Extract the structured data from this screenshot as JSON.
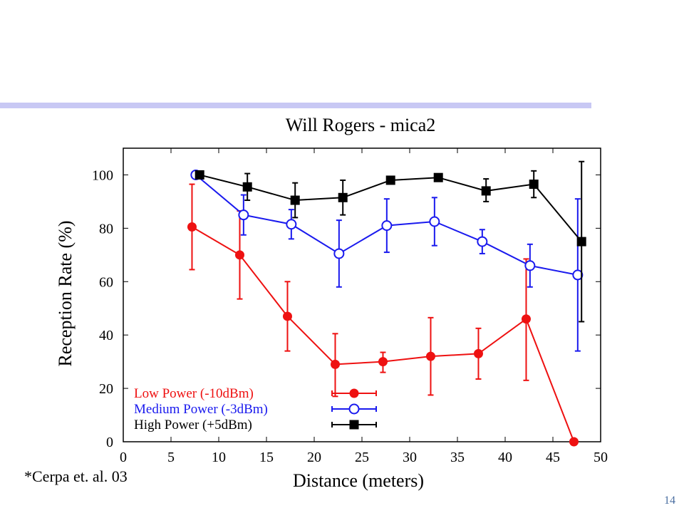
{
  "slide": {
    "citation": "*Cerpa et. al. 03",
    "page_number": "14",
    "accent_color": "#c8c8f4"
  },
  "chart_data": {
    "type": "line",
    "title": "Will Rogers - mica2",
    "xlabel": "Distance (meters)",
    "ylabel": "Reception Rate (%)",
    "xlim": [
      0,
      50
    ],
    "ylim": [
      0,
      110
    ],
    "xticks": [
      0,
      5,
      10,
      15,
      20,
      25,
      30,
      35,
      40,
      45,
      50
    ],
    "yticks": [
      0,
      20,
      40,
      60,
      80,
      100
    ],
    "grid": false,
    "legend_position": "bottom-left",
    "series": [
      {
        "name": "Low Power (-10dBm)",
        "color": "#ee1111",
        "marker": "filled-circle",
        "points": [
          {
            "x": 7.2,
            "y": 80.5,
            "lo": 64.5,
            "hi": 96.5
          },
          {
            "x": 12.2,
            "y": 70,
            "lo": 53.5,
            "hi": 86.5
          },
          {
            "x": 17.2,
            "y": 47,
            "lo": 34,
            "hi": 60
          },
          {
            "x": 22.2,
            "y": 29,
            "lo": 17,
            "hi": 40.5
          },
          {
            "x": 27.2,
            "y": 30,
            "lo": 26,
            "hi": 33.5
          },
          {
            "x": 32.2,
            "y": 32,
            "lo": 17.5,
            "hi": 46.5
          },
          {
            "x": 37.2,
            "y": 33,
            "lo": 23.5,
            "hi": 42.5
          },
          {
            "x": 42.2,
            "y": 46,
            "lo": 23,
            "hi": 68.5
          },
          {
            "x": 47.2,
            "y": 0,
            "lo": 0,
            "hi": 0
          }
        ]
      },
      {
        "name": "Medium Power (-3dBm)",
        "color": "#1a1aee",
        "marker": "open-circle",
        "points": [
          {
            "x": 7.6,
            "y": 100,
            "lo": 100,
            "hi": 100
          },
          {
            "x": 12.6,
            "y": 85,
            "lo": 77.5,
            "hi": 92.5
          },
          {
            "x": 17.6,
            "y": 81.5,
            "lo": 76,
            "hi": 87
          },
          {
            "x": 22.6,
            "y": 70.5,
            "lo": 58,
            "hi": 83
          },
          {
            "x": 27.6,
            "y": 81,
            "lo": 71,
            "hi": 91
          },
          {
            "x": 32.6,
            "y": 82.5,
            "lo": 73.5,
            "hi": 91.5
          },
          {
            "x": 37.6,
            "y": 75,
            "lo": 70.5,
            "hi": 79.5
          },
          {
            "x": 42.6,
            "y": 66,
            "lo": 58,
            "hi": 74
          },
          {
            "x": 47.6,
            "y": 62.5,
            "lo": 34,
            "hi": 91
          }
        ]
      },
      {
        "name": "High Power (+5dBm)",
        "color": "#000000",
        "marker": "filled-square",
        "points": [
          {
            "x": 8,
            "y": 100,
            "lo": 100,
            "hi": 100
          },
          {
            "x": 13,
            "y": 95.5,
            "lo": 90.5,
            "hi": 100.5
          },
          {
            "x": 18,
            "y": 90.5,
            "lo": 84,
            "hi": 97
          },
          {
            "x": 23,
            "y": 91.5,
            "lo": 85,
            "hi": 98
          },
          {
            "x": 28,
            "y": 98,
            "lo": 98,
            "hi": 98
          },
          {
            "x": 33,
            "y": 99,
            "lo": 99,
            "hi": 99
          },
          {
            "x": 38,
            "y": 94,
            "lo": 90,
            "hi": 98.5
          },
          {
            "x": 43,
            "y": 96.5,
            "lo": 91.5,
            "hi": 101.5
          },
          {
            "x": 48,
            "y": 75,
            "lo": 45,
            "hi": 105
          }
        ]
      }
    ]
  }
}
